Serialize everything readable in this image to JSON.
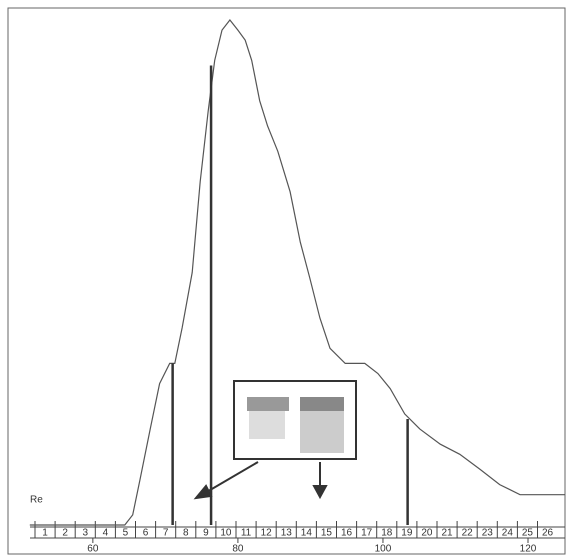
{
  "chart_data": {
    "type": "line",
    "x": [
      51.3,
      64.4,
      65.5,
      66.5,
      67.9,
      69.2,
      70.6,
      71.3,
      72.3,
      73.7,
      74.8,
      75.9,
      76.8,
      77.8,
      78.9,
      80,
      81,
      81.9,
      83,
      84.1,
      85.5,
      87.2,
      88.6,
      89.9,
      91.3,
      92.7,
      94.8,
      97.5,
      99.3,
      101,
      103,
      105.1,
      107.9,
      110.6,
      113.4,
      116.1,
      118.9,
      122.3,
      125.1
    ],
    "series": [
      {
        "color": "#555555",
        "values": [
          0,
          0,
          2,
          9,
          19,
          28,
          32,
          32,
          39,
          50,
          68,
          82,
          92,
          98,
          100,
          98,
          96,
          92,
          84,
          79,
          74,
          66,
          56,
          49,
          41,
          35,
          32,
          32,
          30,
          27,
          22,
          19,
          16,
          14,
          11,
          8,
          6,
          6,
          6
        ]
      }
    ],
    "markers": [
      {
        "x": 71,
        "y": 32
      },
      {
        "x": 76.3,
        "y": 91
      },
      {
        "x": 103.4,
        "y": 21
      }
    ],
    "xlim": [
      48.3,
      125.1
    ],
    "ylim": [
      0,
      100
    ],
    "xticks": [
      60,
      80,
      100,
      120
    ],
    "axis_label": "Re",
    "fractions": [
      "1",
      "2",
      "3",
      "4",
      "5",
      "6",
      "7",
      "8",
      "9",
      "10",
      "11",
      "12",
      "13",
      "14",
      "15",
      "16",
      "17",
      "18",
      "19",
      "20",
      "21",
      "22",
      "23",
      "24",
      "25",
      "26"
    ]
  }
}
